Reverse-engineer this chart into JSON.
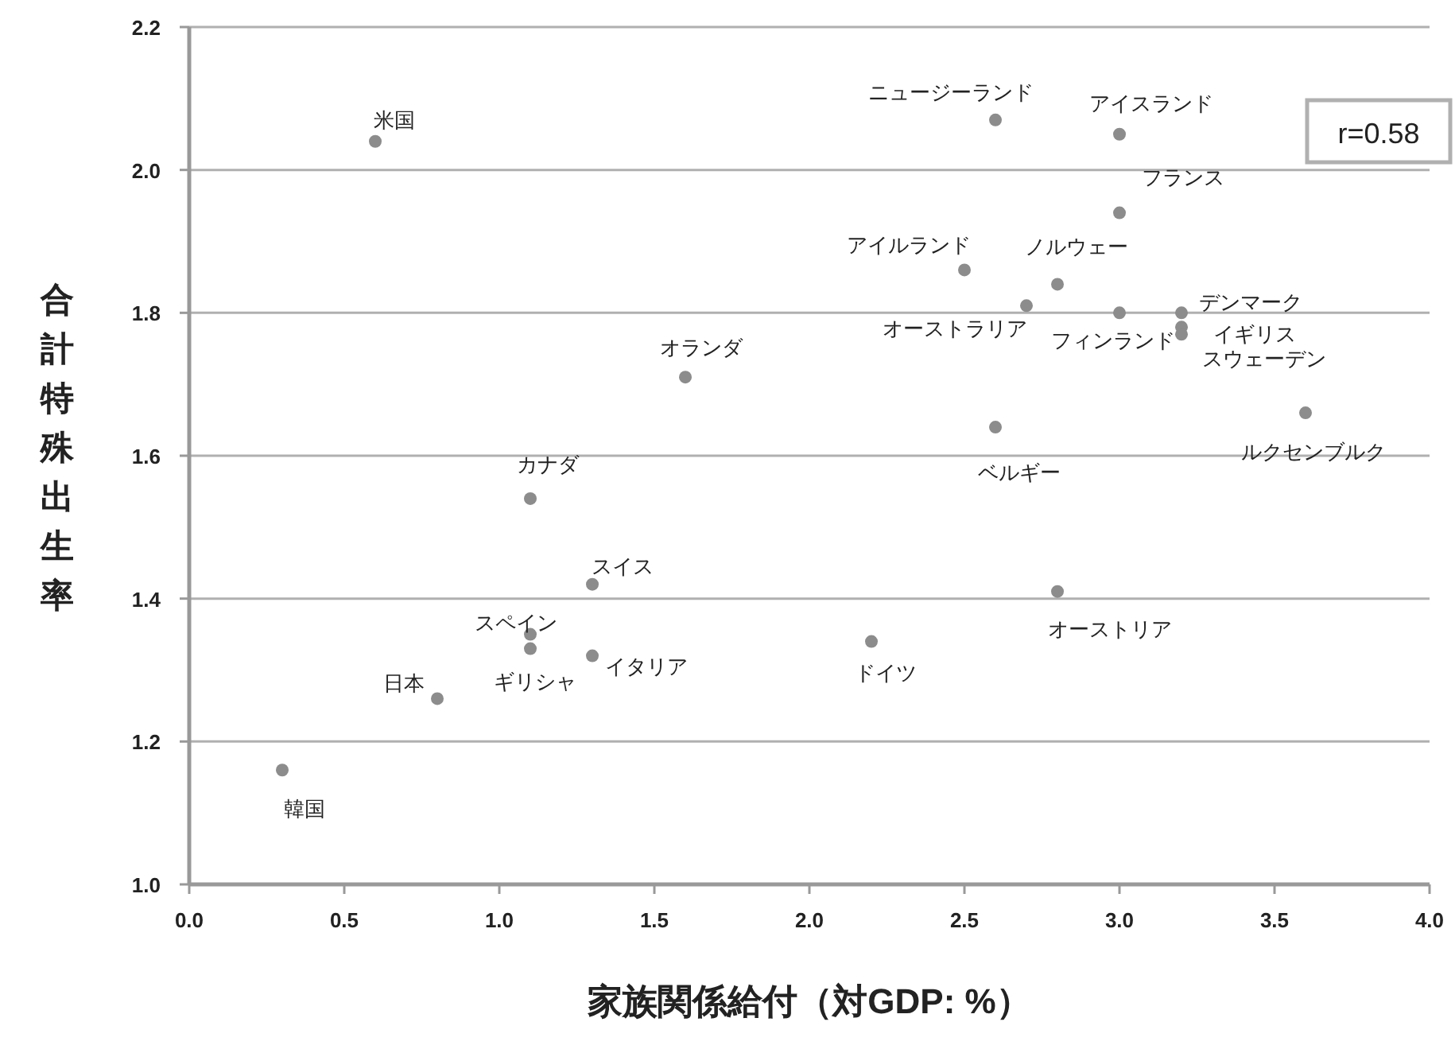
{
  "chart_data": {
    "type": "scatter",
    "xlabel": "家族関係給付（対GDP: %）",
    "ylabel": "合計特殊出生率",
    "x": [
      0.6,
      2.6,
      3.0,
      3.0,
      2.5,
      2.8,
      2.7,
      3.0,
      3.2,
      3.2,
      3.2,
      1.6,
      2.6,
      3.6,
      1.1,
      1.3,
      1.1,
      1.1,
      1.3,
      0.8,
      0.3,
      2.2,
      2.8
    ],
    "series": [
      {
        "color": "#8c8c8c",
        "values": [
          2.04,
          2.07,
          2.05,
          1.94,
          1.86,
          1.84,
          1.81,
          1.8,
          1.8,
          1.78,
          1.77,
          1.71,
          1.64,
          1.66,
          1.54,
          1.42,
          1.35,
          1.33,
          1.32,
          1.26,
          1.16,
          1.34,
          1.41
        ]
      }
    ],
    "marker": "circle",
    "xlim": [
      0,
      4
    ],
    "ylim": [
      1.0,
      2.2
    ],
    "xticks": [
      {
        "value": 0,
        "label": "0.0"
      },
      0.5,
      {
        "value": 1,
        "label": "1.0"
      },
      1.5,
      {
        "value": 2,
        "label": "2.0"
      },
      2.5,
      {
        "value": 3,
        "label": "3.0"
      },
      3.5,
      {
        "value": 4,
        "label": "4.0"
      }
    ],
    "yticks": [
      {
        "value": 1,
        "label": "1.0"
      },
      1.2,
      1.4,
      1.6,
      1.8,
      {
        "value": 2,
        "label": "2.0"
      },
      2.2
    ],
    "grid": "y",
    "annotations": [
      {
        "text": "米国",
        "x": 0.6,
        "y": 2.04
      },
      {
        "text": "ニュージーランド",
        "x": 2.6,
        "y": 2.07
      },
      {
        "text": "アイスランド",
        "x": 3.0,
        "y": 2.05
      },
      {
        "text": "フランス",
        "x": 3.0,
        "y": 1.94
      },
      {
        "text": "アイルランド",
        "x": 2.5,
        "y": 1.86
      },
      {
        "text": "ノルウェー",
        "x": 2.8,
        "y": 1.84
      },
      {
        "text": "オーストラリア",
        "x": 2.7,
        "y": 1.81
      },
      {
        "text": "フィンランド",
        "x": 3.0,
        "y": 1.8
      },
      {
        "text": "デンマーク",
        "x": 3.2,
        "y": 1.8
      },
      {
        "text": "イギリス",
        "x": 3.2,
        "y": 1.78
      },
      {
        "text": "スウェーデン",
        "x": 3.2,
        "y": 1.77
      },
      {
        "text": "オランダ",
        "x": 1.6,
        "y": 1.71
      },
      {
        "text": "ベルギー",
        "x": 2.6,
        "y": 1.64
      },
      {
        "text": "ルクセンブルク",
        "x": 3.6,
        "y": 1.66
      },
      {
        "text": "カナダ",
        "x": 1.1,
        "y": 1.54
      },
      {
        "text": "スイス",
        "x": 1.3,
        "y": 1.42
      },
      {
        "text": "スペイン",
        "x": 1.1,
        "y": 1.35
      },
      {
        "text": "ギリシャ",
        "x": 1.1,
        "y": 1.33
      },
      {
        "text": "イタリア",
        "x": 1.3,
        "y": 1.32
      },
      {
        "text": "日本",
        "x": 0.8,
        "y": 1.26
      },
      {
        "text": "韓国",
        "x": 0.3,
        "y": 1.16
      },
      {
        "text": "ドイツ",
        "x": 2.2,
        "y": 1.34
      },
      {
        "text": "オーストリア",
        "x": 2.8,
        "y": 1.41
      },
      "r=0.58"
    ]
  }
}
